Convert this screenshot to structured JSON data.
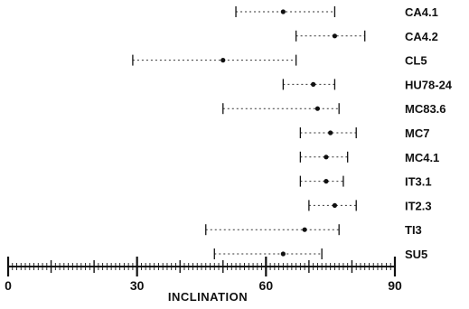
{
  "chart_data": {
    "type": "scatter",
    "xlabel": "INCLINATION",
    "xlim": [
      0,
      90
    ],
    "major_ticks": [
      0,
      30,
      60,
      90
    ],
    "tick_labels": [
      "0",
      "30",
      "60",
      "90"
    ],
    "grid": false,
    "series": [
      {
        "label": "CA4.1",
        "mean": 64,
        "low": 53,
        "high": 76
      },
      {
        "label": "CA4.2",
        "mean": 76,
        "low": 67,
        "high": 83
      },
      {
        "label": "CL5",
        "mean": 50,
        "low": 29,
        "high": 67
      },
      {
        "label": "HU78-24",
        "mean": 71,
        "low": 64,
        "high": 76
      },
      {
        "label": "MC83.6",
        "mean": 72,
        "low": 50,
        "high": 77
      },
      {
        "label": "MC7",
        "mean": 75,
        "low": 68,
        "high": 81
      },
      {
        "label": "MC4.1",
        "mean": 74,
        "low": 68,
        "high": 79
      },
      {
        "label": "IT3.1",
        "mean": 74,
        "low": 68,
        "high": 78
      },
      {
        "label": "IT2.3",
        "mean": 76,
        "low": 70,
        "high": 81
      },
      {
        "label": "TI3",
        "mean": 69,
        "low": 46,
        "high": 77
      },
      {
        "label": "SU5",
        "mean": 64,
        "low": 48,
        "high": 73
      }
    ]
  }
}
